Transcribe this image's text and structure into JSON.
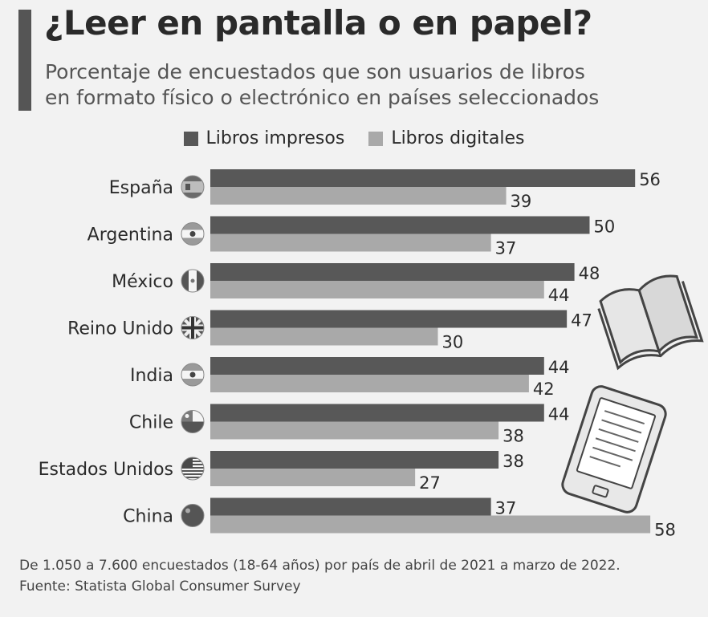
{
  "header": {
    "title": "¿Leer en pantalla o en papel?",
    "subtitle_line1": "Porcentaje de encuestados que son usuarios de libros",
    "subtitle_line2": "en formato físico o electrónico en países seleccionados"
  },
  "colors": {
    "printed": "#585858",
    "digital": "#a9a9a9",
    "accent": "#555555"
  },
  "chart_data": {
    "type": "bar",
    "orientation": "horizontal",
    "categories": [
      "España",
      "Argentina",
      "México",
      "Reino Unido",
      "India",
      "Chile",
      "Estados Unidos",
      "China"
    ],
    "series": [
      {
        "name": "Libros impresos",
        "values": [
          56,
          50,
          48,
          47,
          44,
          44,
          38,
          37
        ]
      },
      {
        "name": "Libros digitales",
        "values": [
          39,
          37,
          44,
          30,
          42,
          38,
          27,
          58
        ]
      }
    ],
    "flag_icons": [
      "spain-flag-icon",
      "argentina-flag-icon",
      "mexico-flag-icon",
      "uk-flag-icon",
      "india-flag-icon",
      "chile-flag-icon",
      "usa-flag-icon",
      "china-flag-icon"
    ],
    "xlim": [
      0,
      60
    ],
    "grid": false,
    "legend_position": "top-center"
  },
  "decorations": [
    "open-book-icon",
    "ereader-icon"
  ],
  "footer": {
    "note": "De 1.050 a 7.600 encuestados (18-64 años) por país de abril de 2021 a marzo de 2022.",
    "source": "Fuente: Statista Global Consumer Survey"
  }
}
